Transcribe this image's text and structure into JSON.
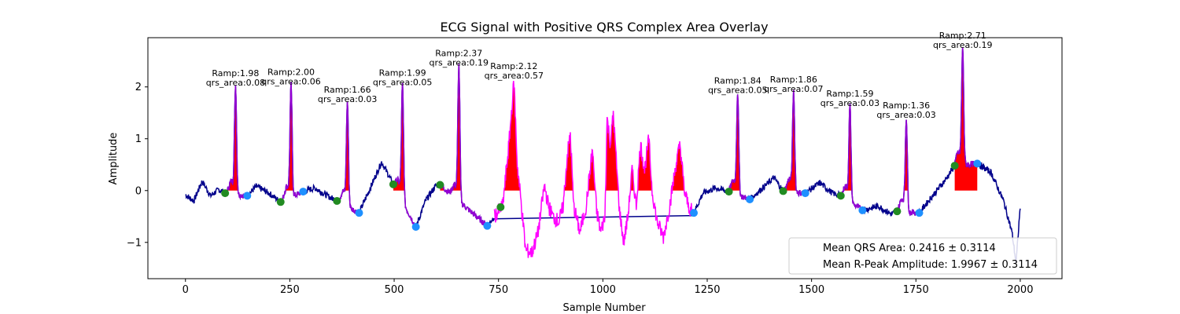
{
  "chart_data": {
    "type": "line",
    "title": "ECG Signal with Positive QRS Complex Area Overlay",
    "xlabel": "Sample Number",
    "ylabel": "Amplitude",
    "xlim": [
      -90,
      2100
    ],
    "ylim": [
      -1.7,
      2.95
    ],
    "xticks": [
      0,
      250,
      500,
      750,
      1000,
      1250,
      1500,
      1750,
      2000
    ],
    "yticks": [
      -1,
      0,
      1,
      2
    ],
    "grid": false,
    "legend_position": "bottom-right",
    "legend": [
      "Mean QRS Area: 0.2416 ± 0.3114",
      "Mean R-Peak Amplitude: 1.9967 ± 0.3114"
    ],
    "colors": {
      "signal": "#00008b",
      "qrs_segment": "#9400d3",
      "noisy_segment": "#ff00ff",
      "area_fill": "#ff0000",
      "onset_marker": "#228b22",
      "offset_marker": "#1e90ff"
    },
    "beats": [
      {
        "r_x": 120,
        "r_amp": 1.98,
        "qrs_area": 0.08,
        "label1": "Ramp:1.98",
        "label2": "qrs_area:0.08",
        "onset": [
          95,
          -0.05
        ],
        "offset": [
          148,
          -0.1
        ]
      },
      {
        "r_x": 253,
        "r_amp": 2.0,
        "qrs_area": 0.06,
        "label1": "Ramp:2.00",
        "label2": "qrs_area:0.06",
        "onset": [
          228,
          -0.22
        ],
        "offset": [
          282,
          -0.02
        ]
      },
      {
        "r_x": 388,
        "r_amp": 1.66,
        "qrs_area": 0.03,
        "label1": "Ramp:1.66",
        "label2": "qrs_area:0.03",
        "onset": [
          363,
          -0.2
        ],
        "offset": [
          416,
          -0.43
        ]
      },
      {
        "r_x": 520,
        "r_amp": 1.99,
        "qrs_area": 0.05,
        "label1": "Ramp:1.99",
        "label2": "qrs_area:0.05",
        "onset": [
          498,
          0.12
        ],
        "offset": [
          552,
          -0.7
        ]
      },
      {
        "r_x": 655,
        "r_amp": 2.37,
        "qrs_area": 0.19,
        "label1": "Ramp:2.37",
        "label2": "qrs_area:0.19",
        "onset": [
          610,
          0.11
        ],
        "offset": [
          723,
          -0.68
        ]
      },
      {
        "r_x": 787,
        "r_amp": 2.12,
        "qrs_area": 0.57,
        "label1": "Ramp:2.12",
        "label2": "qrs_area:0.57",
        "onset": [
          755,
          -0.32
        ],
        "offset": [
          1218,
          -0.43
        ]
      },
      {
        "r_x": 1323,
        "r_amp": 1.84,
        "qrs_area": 0.05,
        "label1": "Ramp:1.84",
        "label2": "qrs_area:0.05",
        "onset": [
          1302,
          -0.02
        ],
        "offset": [
          1352,
          -0.17
        ]
      },
      {
        "r_x": 1457,
        "r_amp": 1.86,
        "qrs_area": 0.07,
        "label1": "Ramp:1.86",
        "label2": "qrs_area:0.07",
        "onset": [
          1432,
          -0.01
        ],
        "offset": [
          1485,
          -0.05
        ]
      },
      {
        "r_x": 1592,
        "r_amp": 1.59,
        "qrs_area": 0.03,
        "label1": "Ramp:1.59",
        "label2": "qrs_area:0.03",
        "onset": [
          1570,
          -0.1
        ],
        "offset": [
          1622,
          -0.38
        ]
      },
      {
        "r_x": 1727,
        "r_amp": 1.36,
        "qrs_area": 0.03,
        "label1": "Ramp:1.36",
        "label2": "qrs_area:0.03",
        "onset": [
          1705,
          -0.4
        ],
        "offset": [
          1758,
          -0.43
        ]
      },
      {
        "r_x": 1862,
        "r_amp": 2.71,
        "qrs_area": 0.19,
        "label1": "Ramp:2.71",
        "label2": "qrs_area:0.19",
        "onset": [
          1843,
          0.48
        ],
        "offset": [
          1897,
          0.52
        ]
      }
    ],
    "noisy_span": [
      740,
      1215
    ],
    "baseline_points": [
      [
        0,
        -0.08
      ],
      [
        20,
        -0.2
      ],
      [
        40,
        0.18
      ],
      [
        60,
        -0.1
      ],
      [
        80,
        0.02
      ],
      [
        95,
        -0.05
      ],
      [
        148,
        -0.1
      ],
      [
        170,
        0.08
      ],
      [
        200,
        -0.05
      ],
      [
        228,
        -0.22
      ],
      [
        282,
        -0.02
      ],
      [
        310,
        0.05
      ],
      [
        340,
        -0.1
      ],
      [
        363,
        -0.2
      ],
      [
        416,
        -0.43
      ],
      [
        440,
        0.0
      ],
      [
        470,
        0.55
      ],
      [
        498,
        0.12
      ],
      [
        552,
        -0.7
      ],
      [
        575,
        -0.2
      ],
      [
        600,
        0.1
      ],
      [
        610,
        0.11
      ],
      [
        723,
        -0.68
      ],
      [
        740,
        -0.5
      ],
      [
        1218,
        -0.43
      ],
      [
        1240,
        -0.05
      ],
      [
        1270,
        0.05
      ],
      [
        1302,
        -0.02
      ],
      [
        1352,
        -0.17
      ],
      [
        1390,
        0.1
      ],
      [
        1410,
        0.25
      ],
      [
        1432,
        -0.01
      ],
      [
        1485,
        -0.05
      ],
      [
        1520,
        0.15
      ],
      [
        1550,
        -0.05
      ],
      [
        1570,
        -0.1
      ],
      [
        1622,
        -0.38
      ],
      [
        1660,
        -0.3
      ],
      [
        1690,
        -0.45
      ],
      [
        1705,
        -0.4
      ],
      [
        1758,
        -0.43
      ],
      [
        1790,
        -0.1
      ],
      [
        1820,
        0.2
      ],
      [
        1843,
        0.48
      ],
      [
        1897,
        0.52
      ],
      [
        1930,
        0.35
      ],
      [
        1960,
        -0.2
      ],
      [
        1980,
        -0.8
      ],
      [
        1990,
        -1.4
      ],
      [
        2000,
        -0.3
      ]
    ]
  }
}
